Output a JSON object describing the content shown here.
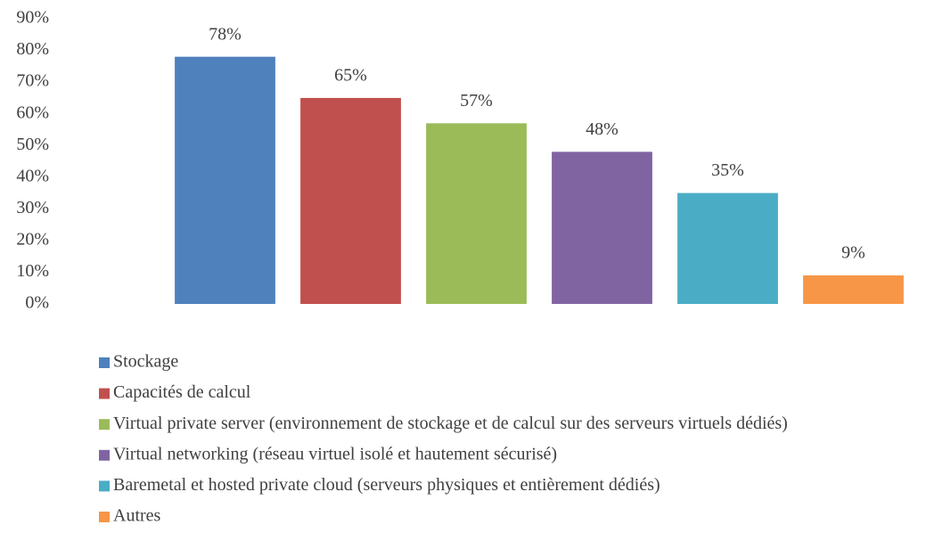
{
  "chart_data": {
    "type": "bar",
    "categories": [
      "Stockage",
      "Capacités de calcul",
      "Virtual private server (environnement de stockage et de calcul sur des serveurs virtuels dédiés)",
      "Virtual networking (réseau virtuel isolé et hautement sécurisé)",
      "Baremetal et hosted private cloud (serveurs physiques et entièrement dédiés)",
      "Autres"
    ],
    "values": [
      78,
      65,
      57,
      48,
      35,
      9
    ],
    "value_labels": [
      "78%",
      "65%",
      "57%",
      "48%",
      "35%",
      "9%"
    ],
    "colors": [
      "#4f81bd",
      "#c0504d",
      "#9bbb59",
      "#8064a2",
      "#4bacc6",
      "#f79646"
    ],
    "ylim": [
      0,
      90
    ],
    "yticks": [
      {
        "value": 0,
        "label": "0%"
      },
      {
        "value": 10,
        "label": "10%"
      },
      {
        "value": 20,
        "label": "20%"
      },
      {
        "value": 30,
        "label": "30%"
      },
      {
        "value": 40,
        "label": "40%"
      },
      {
        "value": 50,
        "label": "50%"
      },
      {
        "value": 60,
        "label": "60%"
      },
      {
        "value": 70,
        "label": "70%"
      },
      {
        "value": 80,
        "label": "80%"
      },
      {
        "value": 90,
        "label": "90%"
      }
    ],
    "grid": false,
    "legend": "bottom"
  }
}
